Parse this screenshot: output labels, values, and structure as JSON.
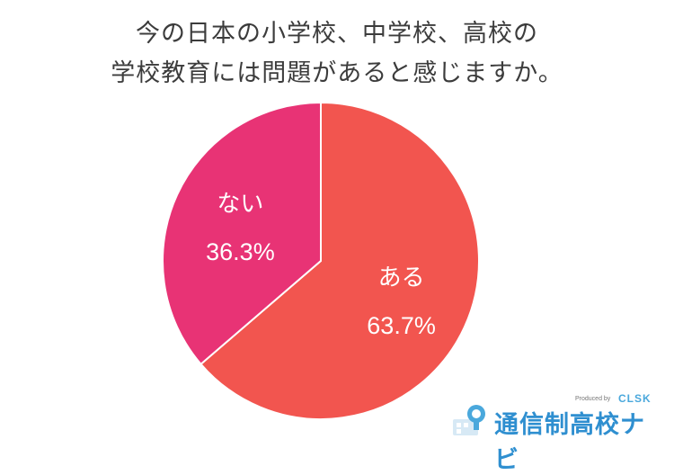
{
  "title": {
    "line1": "今の日本の小学校、中学校、高校の",
    "line2": "学校教育には問題があると感じますか。"
  },
  "chart_data": {
    "type": "pie",
    "title": "今の日本の小学校、中学校、高校の学校教育には問題があると感じますか。",
    "slices": [
      {
        "label": "ある",
        "value": 63.7,
        "display": "63.7%",
        "color": "#f2554f"
      },
      {
        "label": "ない",
        "value": 36.3,
        "display": "36.3%",
        "color": "#e83375"
      }
    ],
    "start": "top",
    "direction": "clockwise",
    "legend": "none"
  },
  "logo": {
    "produced_by": "Produced by",
    "brand": "CLSK",
    "name": "通信制高校ナビ",
    "icon": "school-building-icon"
  }
}
